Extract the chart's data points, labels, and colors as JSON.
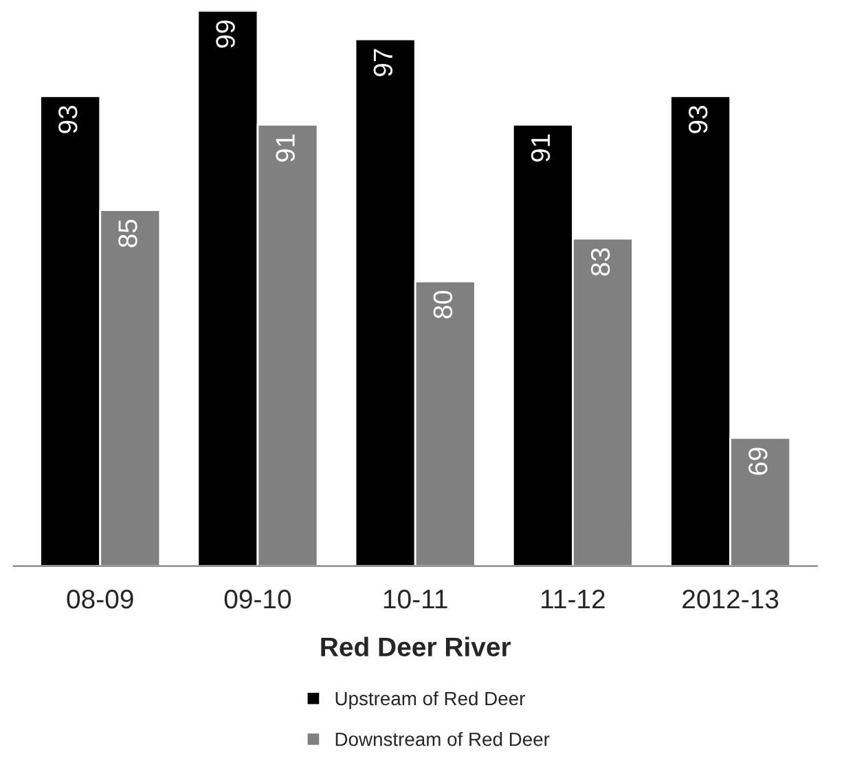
{
  "chart_data": {
    "type": "bar",
    "xlabel": "Red Deer River",
    "categories": [
      "08-09",
      "09-10",
      "10-11",
      "11-12",
      "2012-13"
    ],
    "series": [
      {
        "name": "Upstream of Red Deer",
        "color": "#000000",
        "values": [
          93,
          99,
          97,
          91,
          93
        ]
      },
      {
        "name": "Downstream of Red Deer",
        "color": "#808080",
        "values": [
          85,
          91,
          80,
          83,
          69
        ]
      }
    ],
    "ylim": [
      60,
      99
    ],
    "data_labels": true,
    "legend": "bottom",
    "grid": false
  }
}
